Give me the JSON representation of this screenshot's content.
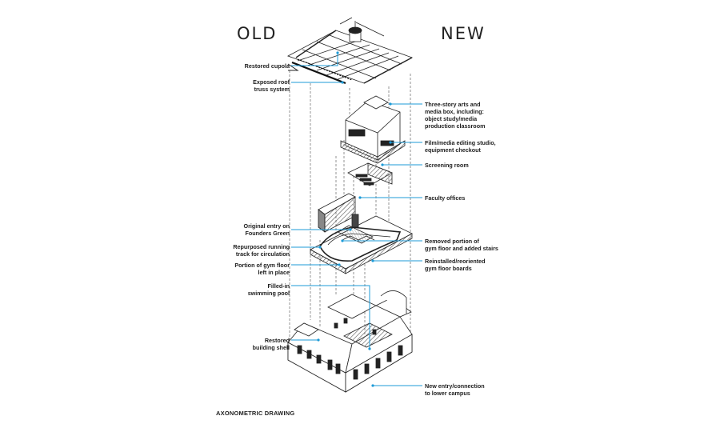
{
  "headers": {
    "old": "OLD",
    "new": "NEW"
  },
  "caption": "AXONOMETRIC DRAWING",
  "accent_color": "#1e9bd7",
  "labels_left": [
    "Restored cupola",
    "Exposed roof\ntruss system",
    "Original entry on\nFounders Green",
    "Repurposed running\ntrack for circulation",
    "Portion of gym floor\nleft in place",
    "Filled-in\nswimming pool",
    "Restored\nbuilding shell"
  ],
  "labels_right": [
    "Three-story arts and\nmedia box, including:\nobject study/media\nproduction classroom",
    "Film/media editing studio,\nequipment checkout",
    "Screening room",
    "Faculty offices",
    "Removed portion of\ngym floor and added stairs",
    "Reinstalled/reoriented\ngym floor boards",
    "New entry/connection\nto lower campus"
  ]
}
